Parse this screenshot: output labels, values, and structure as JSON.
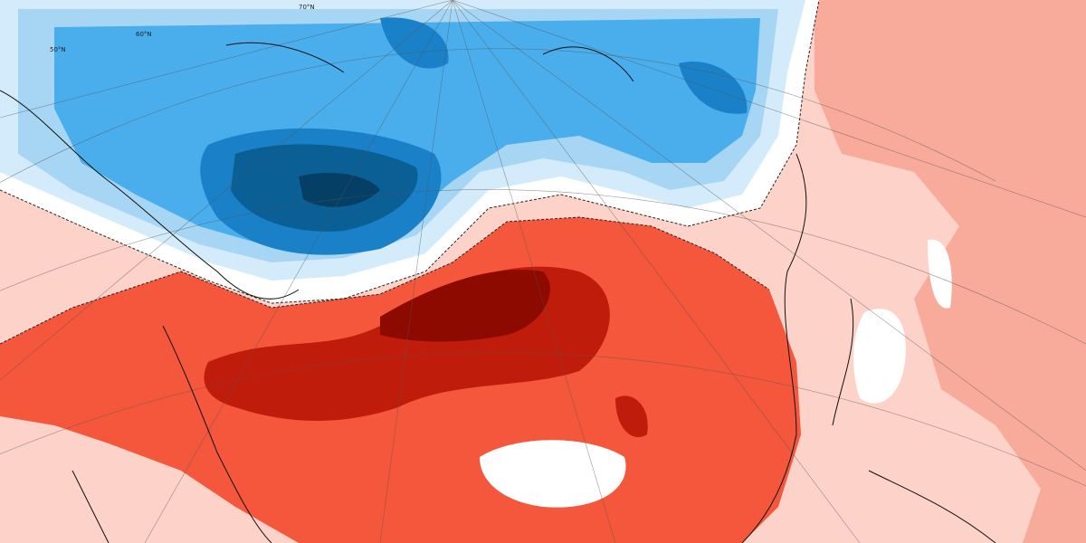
{
  "map": {
    "labels": [
      "70°N",
      "60°N",
      "50°N"
    ]
  }
}
